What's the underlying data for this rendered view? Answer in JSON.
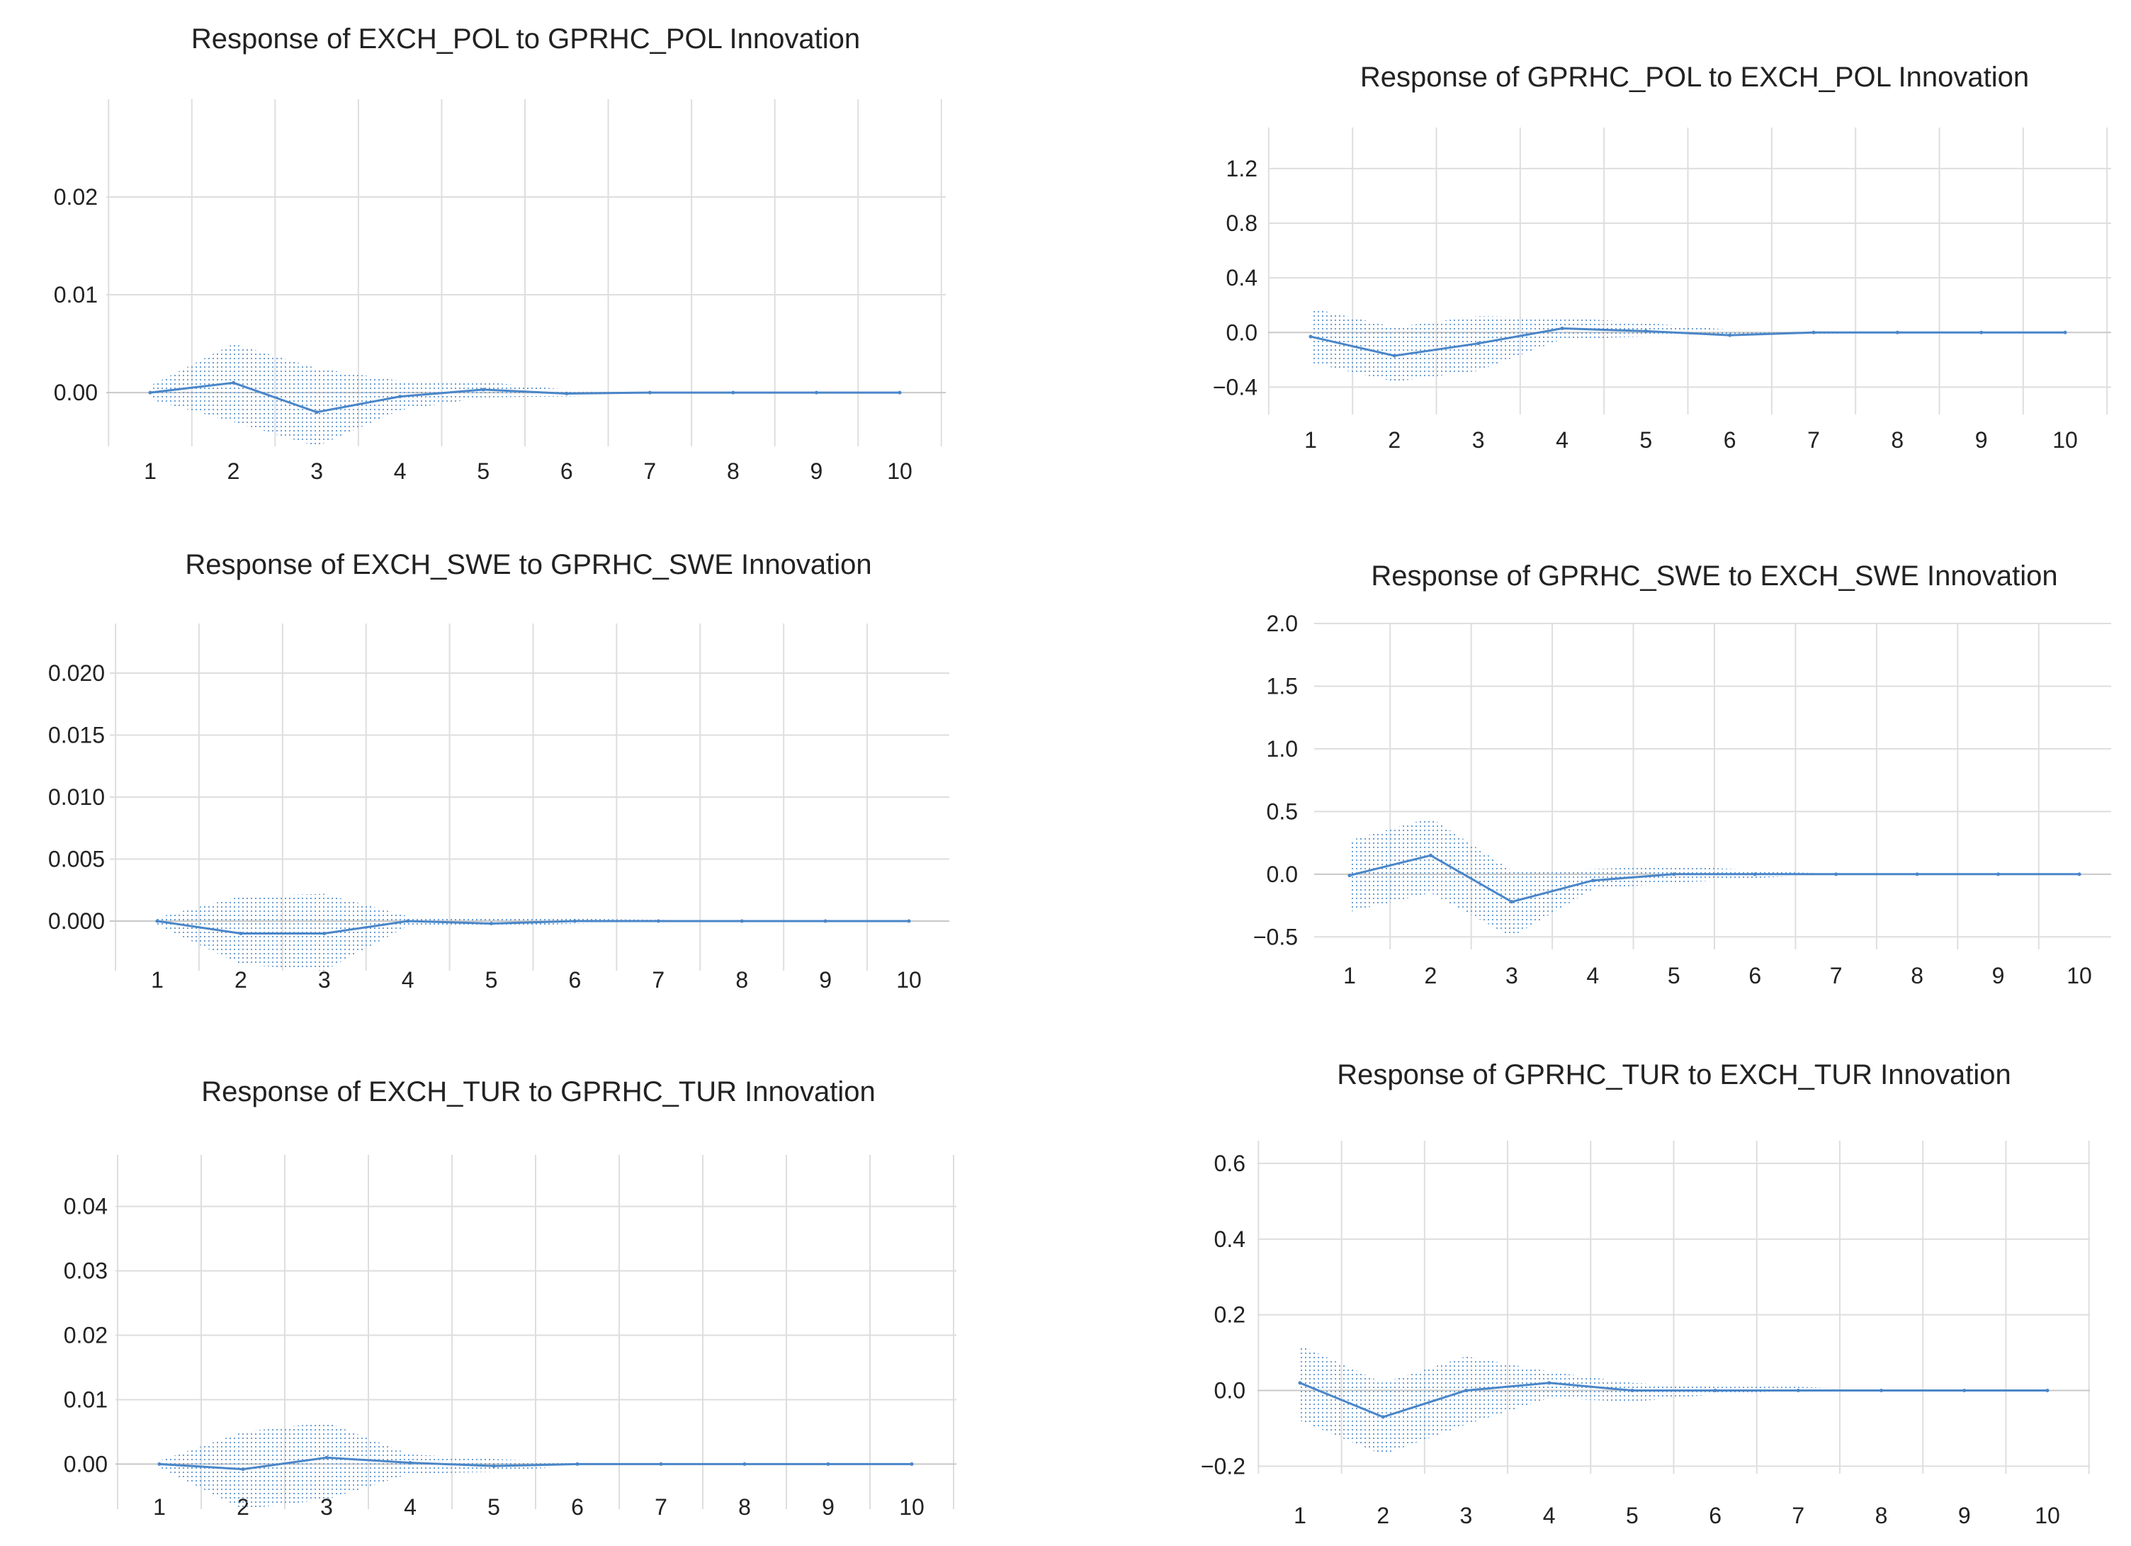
{
  "colors": {
    "line": "#4a86c8",
    "band": "#6a9fd6",
    "grid": "#dedede",
    "text": "#222222"
  },
  "chart_data": [
    {
      "type": "line",
      "title": "Response of EXCH_POL to GPRHC_POL Innovation",
      "x": [
        1,
        2,
        3,
        4,
        5,
        6,
        7,
        8,
        9,
        10
      ],
      "x_tick_labels": [
        "1",
        "2",
        "3",
        "4",
        "5",
        "6",
        "7",
        "8",
        "9",
        "10"
      ],
      "y_ticks": [
        0.0,
        0.01,
        0.02
      ],
      "y_tick_labels": [
        "0.00",
        "0.01",
        "0.02"
      ],
      "ylim": [
        -0.0055,
        0.03
      ],
      "series": [
        {
          "name": "response",
          "values": [
            0.0,
            0.001,
            -0.002,
            -0.0004,
            0.0003,
            -0.0001,
            0.0,
            0.0,
            0.0,
            0.0
          ]
        },
        {
          "name": "upper",
          "values": [
            0.0007,
            0.005,
            0.0025,
            0.0012,
            0.0011,
            0.0003,
            0.0002,
            0.0001,
            0.0,
            0.0
          ]
        },
        {
          "name": "lower",
          "values": [
            -0.0007,
            -0.003,
            -0.0055,
            -0.0018,
            -0.0005,
            -0.0004,
            -0.0002,
            -0.0001,
            0.0,
            0.0
          ]
        }
      ]
    },
    {
      "type": "line",
      "title": "Response of GPRHC_POL to EXCH_POL Innovation",
      "x": [
        1,
        2,
        3,
        4,
        5,
        6,
        7,
        8,
        9,
        10
      ],
      "x_tick_labels": [
        "1",
        "2",
        "3",
        "4",
        "5",
        "6",
        "7",
        "8",
        "9",
        "10"
      ],
      "y_ticks": [
        -0.4,
        0.0,
        0.4,
        0.8,
        1.2
      ],
      "y_tick_labels": [
        "−0.4",
        "0.0",
        "0.4",
        "0.8",
        "1.2"
      ],
      "ylim": [
        -0.6,
        1.5
      ],
      "series": [
        {
          "name": "response",
          "values": [
            -0.03,
            -0.17,
            -0.08,
            0.03,
            0.01,
            -0.02,
            0.0,
            0.0,
            0.0,
            0.0
          ]
        },
        {
          "name": "upper",
          "values": [
            0.18,
            0.04,
            0.12,
            0.11,
            0.07,
            0.02,
            0.0,
            0.0,
            0.0,
            0.0
          ]
        },
        {
          "name": "lower",
          "values": [
            -0.22,
            -0.36,
            -0.28,
            -0.05,
            -0.03,
            -0.03,
            -0.01,
            0.0,
            0.0,
            0.0
          ]
        }
      ]
    },
    {
      "type": "line",
      "title": "Response of EXCH_SWE to GPRHC_SWE Innovation",
      "x": [
        1,
        2,
        3,
        4,
        5,
        6,
        7,
        8,
        9,
        10
      ],
      "x_tick_labels": [
        "1",
        "2",
        "3",
        "4",
        "5",
        "6",
        "7",
        "8",
        "9",
        "10"
      ],
      "y_ticks": [
        0.0,
        0.005,
        0.01,
        0.015,
        0.02
      ],
      "y_tick_labels": [
        "0.000",
        "0.005",
        "0.010",
        "0.015",
        "0.020"
      ],
      "ylim": [
        -0.004,
        0.024
      ],
      "series": [
        {
          "name": "response",
          "values": [
            0.0,
            -0.001,
            -0.001,
            0.0,
            -0.0002,
            0.0,
            0.0,
            0.0,
            0.0,
            0.0
          ]
        },
        {
          "name": "upper",
          "values": [
            0.0003,
            0.002,
            0.0022,
            0.0004,
            0.0002,
            0.0002,
            0.0001,
            0.0,
            0.0,
            0.0
          ]
        },
        {
          "name": "lower",
          "values": [
            -0.0003,
            -0.0035,
            -0.004,
            -0.0004,
            -0.0005,
            -0.0002,
            -0.0001,
            0.0,
            0.0,
            0.0
          ]
        }
      ]
    },
    {
      "type": "line",
      "title": "Response of GPRHC_SWE to EXCH_SWE Innovation",
      "x": [
        1,
        2,
        3,
        4,
        5,
        6,
        7,
        8,
        9,
        10
      ],
      "x_tick_labels": [
        "1",
        "2",
        "3",
        "4",
        "5",
        "6",
        "7",
        "8",
        "9",
        "10"
      ],
      "y_ticks": [
        -0.5,
        0.0,
        0.5,
        1.0,
        1.5,
        2.0
      ],
      "y_tick_labels": [
        "−0.5",
        "0.0",
        "0.5",
        "1.0",
        "1.5",
        "2.0"
      ],
      "ylim": [
        -0.6,
        2.0
      ],
      "series": [
        {
          "name": "response",
          "values": [
            -0.01,
            0.15,
            -0.22,
            -0.05,
            0.0,
            0.0,
            0.0,
            0.0,
            0.0,
            0.0
          ]
        },
        {
          "name": "upper",
          "values": [
            0.27,
            0.45,
            0.03,
            0.04,
            0.07,
            0.03,
            0.0,
            0.0,
            0.0,
            0.0
          ]
        },
        {
          "name": "lower",
          "values": [
            -0.3,
            -0.15,
            -0.5,
            -0.12,
            -0.07,
            -0.03,
            0.0,
            0.0,
            0.0,
            0.0
          ]
        }
      ]
    },
    {
      "type": "line",
      "title": "Response of EXCH_TUR to GPRHC_TUR Innovation",
      "x": [
        1,
        2,
        3,
        4,
        5,
        6,
        7,
        8,
        9,
        10
      ],
      "x_tick_labels": [
        "1",
        "2",
        "3",
        "4",
        "5",
        "6",
        "7",
        "8",
        "9",
        "10"
      ],
      "y_ticks": [
        0.0,
        0.01,
        0.02,
        0.03,
        0.04
      ],
      "y_tick_labels": [
        "0.00",
        "0.01",
        "0.02",
        "0.03",
        "0.04"
      ],
      "ylim": [
        -0.007,
        0.048
      ],
      "series": [
        {
          "name": "response",
          "values": [
            0.0,
            -0.0008,
            0.001,
            0.0002,
            -0.0003,
            0.0,
            0.0,
            0.0,
            0.0,
            0.0
          ]
        },
        {
          "name": "upper",
          "values": [
            0.0005,
            0.005,
            0.0065,
            0.0015,
            0.0008,
            0.0002,
            0.0,
            0.0,
            0.0,
            0.0
          ]
        },
        {
          "name": "lower",
          "values": [
            -0.0005,
            -0.007,
            -0.0055,
            -0.0015,
            -0.0012,
            -0.0002,
            0.0,
            0.0,
            0.0,
            0.0
          ]
        }
      ]
    },
    {
      "type": "line",
      "title": "Response of GPRHC_TUR to EXCH_TUR Innovation",
      "x": [
        1,
        2,
        3,
        4,
        5,
        6,
        7,
        8,
        9,
        10
      ],
      "x_tick_labels": [
        "1",
        "2",
        "3",
        "4",
        "5",
        "6",
        "7",
        "8",
        "9",
        "10"
      ],
      "y_ticks": [
        -0.2,
        0.0,
        0.2,
        0.4,
        0.6
      ],
      "y_tick_labels": [
        "−0.2",
        "0.0",
        "0.2",
        "0.4",
        "0.6"
      ],
      "ylim": [
        -0.22,
        0.66
      ],
      "series": [
        {
          "name": "response",
          "values": [
            0.02,
            -0.07,
            0.0,
            0.02,
            0.0,
            0.0,
            0.0,
            0.0,
            0.0,
            0.0
          ]
        },
        {
          "name": "upper",
          "values": [
            0.12,
            0.02,
            0.09,
            0.05,
            0.02,
            0.01,
            0.01,
            0.0,
            0.0,
            0.0
          ]
        },
        {
          "name": "lower",
          "values": [
            -0.08,
            -0.17,
            -0.09,
            -0.02,
            -0.03,
            -0.01,
            0.0,
            0.0,
            0.0,
            0.0
          ]
        }
      ]
    }
  ]
}
